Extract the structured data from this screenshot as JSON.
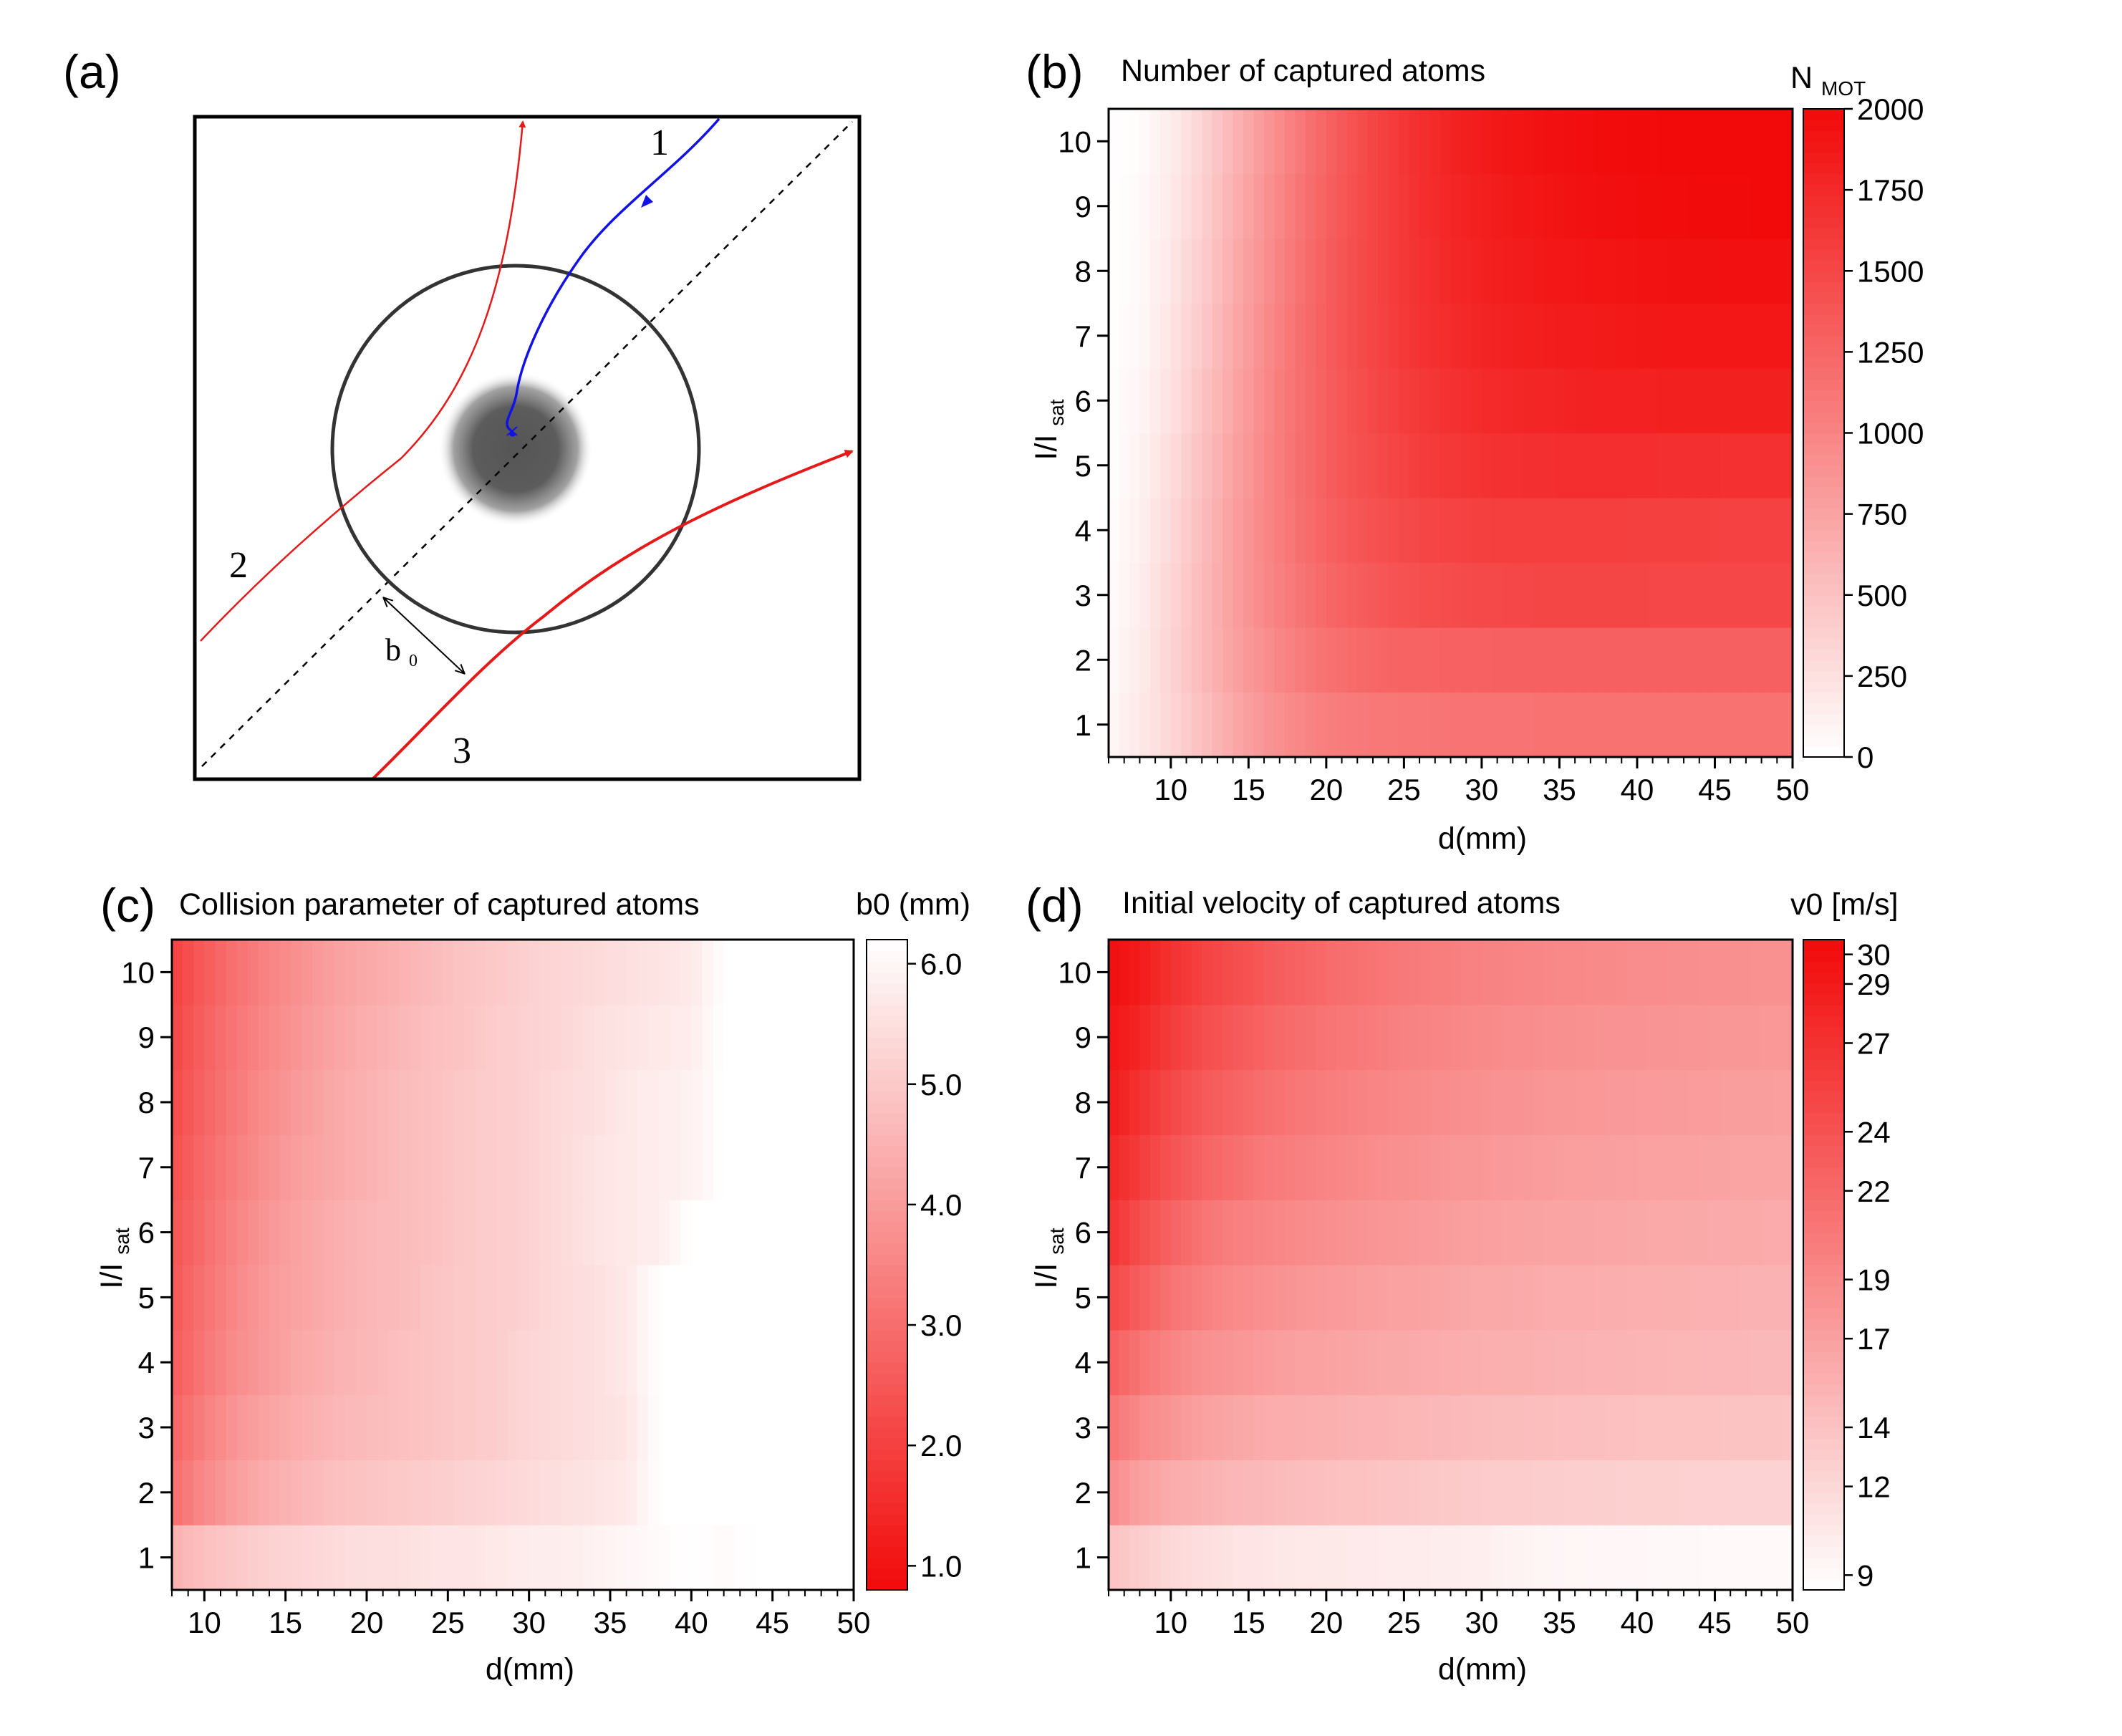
{
  "panels": {
    "a": {
      "label": "(a)",
      "traj1": "1",
      "traj2": "2",
      "traj3": "3",
      "b0_label": "b",
      "b0_sub": "0"
    },
    "b": {
      "label": "(b)",
      "title": "Number of captured atoms",
      "cbar_title": "N",
      "cbar_sub": "MOT"
    },
    "c": {
      "label": "(c)",
      "title": "Collision parameter of captured atoms",
      "cbar_title": "b0 (mm)"
    },
    "d": {
      "label": "(d)",
      "title": "Initial velocity of captured atoms",
      "cbar_title": "v0 [m/s]"
    }
  },
  "chart_data": [
    {
      "panel": "b",
      "type": "heatmap",
      "title": "Number of captured atoms",
      "xlabel": "d(mm)",
      "ylabel": "I/I",
      "ylabel_sub": "sat",
      "xlim": [
        6,
        50
      ],
      "ylim": [
        0.5,
        10.5
      ],
      "xticks": [
        10,
        15,
        20,
        25,
        30,
        35,
        40,
        45,
        50
      ],
      "yticks": [
        1,
        2,
        3,
        4,
        5,
        6,
        7,
        8,
        9,
        10
      ],
      "colorbar": {
        "label": "NMOT",
        "range": [
          0,
          2000
        ],
        "ticks": [
          0,
          250,
          500,
          750,
          1000,
          1250,
          1500,
          1750,
          2000
        ],
        "low_color": "#ffffff",
        "high_color": "#f20a0a"
      },
      "d_values": [
        6,
        8,
        10,
        12,
        14,
        16,
        18,
        20,
        22,
        24,
        26,
        28,
        30,
        32,
        34,
        36,
        38,
        40,
        42,
        44,
        46,
        48,
        50
      ],
      "z": [
        [
          60,
          180,
          330,
          520,
          700,
          860,
          970,
          1050,
          1090,
          1110,
          1120,
          1130,
          1140,
          1140,
          1150,
          1150,
          1150,
          1150,
          1150,
          1150,
          1150,
          1150,
          1150
        ],
        [
          40,
          150,
          350,
          560,
          760,
          920,
          1050,
          1150,
          1220,
          1260,
          1280,
          1290,
          1290,
          1300,
          1300,
          1300,
          1300,
          1300,
          1300,
          1300,
          1300,
          1300,
          1300
        ],
        [
          30,
          140,
          330,
          560,
          780,
          960,
          1110,
          1230,
          1320,
          1390,
          1440,
          1470,
          1490,
          1500,
          1510,
          1510,
          1510,
          1510,
          1500,
          1500,
          1500,
          1500,
          1500
        ],
        [
          20,
          120,
          300,
          540,
          770,
          980,
          1140,
          1280,
          1380,
          1450,
          1500,
          1540,
          1560,
          1570,
          1570,
          1570,
          1570,
          1560,
          1560,
          1560,
          1550,
          1550,
          1550
        ],
        [
          10,
          100,
          270,
          510,
          750,
          970,
          1160,
          1310,
          1420,
          1510,
          1580,
          1630,
          1670,
          1690,
          1700,
          1710,
          1710,
          1710,
          1700,
          1700,
          1690,
          1690,
          1690
        ],
        [
          10,
          80,
          240,
          480,
          720,
          950,
          1150,
          1310,
          1440,
          1540,
          1620,
          1680,
          1730,
          1760,
          1780,
          1800,
          1810,
          1810,
          1820,
          1820,
          1820,
          1820,
          1820
        ],
        [
          5,
          60,
          210,
          440,
          690,
          930,
          1140,
          1320,
          1460,
          1570,
          1660,
          1730,
          1780,
          1820,
          1840,
          1860,
          1870,
          1880,
          1890,
          1890,
          1890,
          1890,
          1890
        ],
        [
          5,
          50,
          190,
          410,
          660,
          900,
          1120,
          1310,
          1460,
          1580,
          1680,
          1750,
          1810,
          1850,
          1880,
          1900,
          1920,
          1930,
          1940,
          1940,
          1950,
          1950,
          1950
        ],
        [
          5,
          40,
          170,
          380,
          630,
          870,
          1090,
          1290,
          1450,
          1580,
          1690,
          1770,
          1830,
          1880,
          1910,
          1940,
          1960,
          1970,
          1980,
          1990,
          1990,
          2000,
          2000
        ],
        [
          5,
          30,
          150,
          350,
          600,
          840,
          1060,
          1270,
          1440,
          1580,
          1700,
          1790,
          1860,
          1910,
          1940,
          1960,
          1980,
          1990,
          2000,
          2000,
          2000,
          2000,
          2000
        ]
      ]
    },
    {
      "panel": "c",
      "type": "heatmap",
      "title": "Collision parameter of captured atoms",
      "xlabel": "d(mm)",
      "ylabel": "I/I",
      "ylabel_sub": "sat",
      "xlim": [
        8,
        50
      ],
      "ylim": [
        0.5,
        10.5
      ],
      "xticks": [
        10,
        15,
        20,
        25,
        30,
        35,
        40,
        45,
        50
      ],
      "yticks": [
        1,
        2,
        3,
        4,
        5,
        6,
        7,
        8,
        9,
        10
      ],
      "colorbar": {
        "label": "b0 (mm)",
        "range": [
          0.8,
          6.2
        ],
        "ticks": [
          1.0,
          2.0,
          3.0,
          4.0,
          5.0,
          6.0
        ],
        "low_color": "#f20a0a",
        "high_color": "#ffffff"
      },
      "d_values": [
        8,
        10,
        12,
        14,
        16,
        18,
        20,
        22,
        24,
        26,
        28,
        30,
        32,
        34,
        36,
        38,
        40,
        42,
        44,
        46,
        48,
        50
      ],
      "z": [
        [
          4.5,
          4.8,
          5.0,
          5.2,
          5.3,
          5.4,
          5.5,
          5.5,
          5.6,
          5.6,
          5.7,
          5.8,
          5.8,
          5.9,
          6.0,
          6.1,
          6.2,
          6.1,
          6.2,
          6.2,
          6.2,
          6.2
        ],
        [
          3.0,
          3.6,
          4.1,
          4.4,
          4.6,
          4.8,
          4.9,
          5.0,
          5.1,
          5.2,
          5.3,
          5.4,
          5.5,
          5.6,
          5.7,
          6.2,
          6.2,
          6.2,
          6.2,
          6.2,
          6.2,
          6.2
        ],
        [
          2.8,
          3.4,
          3.9,
          4.2,
          4.4,
          4.6,
          4.7,
          4.8,
          4.9,
          5.0,
          5.1,
          5.3,
          5.4,
          5.5,
          5.6,
          6.2,
          6.2,
          6.2,
          6.2,
          6.2,
          6.2,
          6.2
        ],
        [
          2.6,
          3.2,
          3.7,
          4.0,
          4.3,
          4.5,
          4.6,
          4.8,
          4.9,
          5.0,
          5.1,
          5.3,
          5.4,
          5.5,
          5.7,
          6.2,
          6.2,
          6.2,
          6.2,
          6.2,
          6.2,
          6.2
        ],
        [
          2.5,
          3.1,
          3.6,
          4.0,
          4.2,
          4.4,
          4.6,
          4.7,
          4.9,
          5.0,
          5.1,
          5.2,
          5.4,
          5.5,
          5.7,
          6.2,
          6.2,
          6.2,
          6.2,
          6.2,
          6.2,
          6.2
        ],
        [
          2.4,
          3.0,
          3.5,
          3.9,
          4.2,
          4.4,
          4.6,
          4.7,
          4.8,
          5.0,
          5.1,
          5.2,
          5.4,
          5.6,
          5.7,
          5.8,
          6.2,
          6.2,
          6.2,
          6.2,
          6.2,
          6.2
        ],
        [
          2.3,
          2.9,
          3.4,
          3.8,
          4.1,
          4.3,
          4.5,
          4.7,
          4.8,
          5.0,
          5.1,
          5.2,
          5.4,
          5.6,
          5.7,
          5.8,
          5.9,
          6.2,
          6.2,
          6.2,
          6.2,
          6.2
        ],
        [
          2.2,
          2.8,
          3.3,
          3.7,
          4.0,
          4.3,
          4.5,
          4.7,
          4.8,
          5.0,
          5.1,
          5.2,
          5.4,
          5.5,
          5.7,
          5.8,
          5.9,
          6.2,
          6.2,
          6.2,
          6.2,
          6.2
        ],
        [
          2.1,
          2.7,
          3.2,
          3.6,
          3.9,
          4.2,
          4.4,
          4.6,
          4.8,
          4.9,
          5.1,
          5.2,
          5.3,
          5.5,
          5.6,
          5.7,
          5.8,
          6.2,
          6.2,
          6.2,
          6.2,
          6.2
        ],
        [
          2.0,
          2.6,
          3.1,
          3.5,
          3.8,
          4.1,
          4.3,
          4.5,
          4.7,
          4.9,
          5.0,
          5.2,
          5.3,
          5.4,
          5.5,
          5.6,
          5.7,
          6.2,
          6.2,
          6.2,
          6.2,
          6.2
        ]
      ]
    },
    {
      "panel": "d",
      "type": "heatmap",
      "title": "Initial velocity of captured atoms",
      "xlabel": "d(mm)",
      "ylabel": "I/I",
      "ylabel_sub": "sat",
      "xlim": [
        6,
        50
      ],
      "ylim": [
        0.5,
        10.5
      ],
      "xticks": [
        10,
        15,
        20,
        25,
        30,
        35,
        40,
        45,
        50
      ],
      "yticks": [
        1,
        2,
        3,
        4,
        5,
        6,
        7,
        8,
        9,
        10
      ],
      "colorbar": {
        "label": "v0 [m/s]",
        "range": [
          8.5,
          30.5
        ],
        "ticks": [
          9,
          12,
          14,
          17,
          19,
          22,
          24,
          27,
          29,
          30
        ],
        "low_color": "#ffffff",
        "high_color": "#f20a0a"
      },
      "d_values": [
        6,
        8,
        10,
        12,
        14,
        16,
        18,
        20,
        22,
        24,
        26,
        28,
        30,
        32,
        34,
        36,
        38,
        40,
        42,
        44,
        46,
        48,
        50
      ],
      "z": [
        [
          14,
          13,
          12,
          11.5,
          11,
          10.8,
          10.6,
          10.5,
          10.4,
          10.3,
          10.2,
          10.1,
          10.0,
          9.6,
          9.4,
          9.3,
          9.2,
          9.2,
          9.1,
          9.1,
          9.0,
          9.0,
          9.0
        ],
        [
          19,
          17,
          16,
          15.5,
          15,
          14.8,
          14.5,
          14.2,
          14,
          13.8,
          13.6,
          13.4,
          13.2,
          13.1,
          13.0,
          12.9,
          12.8,
          12.7,
          12.7,
          12.6,
          12.6,
          12.5,
          12.5
        ],
        [
          21,
          19,
          18,
          17,
          16.5,
          16,
          15.8,
          15.6,
          15.4,
          15.2,
          15,
          14.8,
          14.6,
          14.5,
          14.4,
          14.3,
          14.2,
          14.1,
          14.0,
          14.0,
          13.9,
          13.9,
          13.8
        ],
        [
          23,
          21,
          19.5,
          18.5,
          18,
          17.5,
          17,
          16.8,
          16.5,
          16.3,
          16.1,
          15.9,
          15.7,
          15.6,
          15.5,
          15.4,
          15.3,
          15.2,
          15.1,
          15.0,
          15.0,
          14.9,
          14.9
        ],
        [
          25,
          23,
          21,
          20,
          19,
          18.5,
          18,
          17.6,
          17.3,
          17,
          16.8,
          16.5,
          16.3,
          16.2,
          16.0,
          15.9,
          15.8,
          15.7,
          15.6,
          15.5,
          15.5,
          15.4,
          15.4
        ],
        [
          27,
          24.5,
          22.5,
          21,
          20,
          19.5,
          19,
          18.6,
          18.2,
          17.9,
          17.6,
          17.3,
          17.1,
          16.9,
          16.7,
          16.6,
          16.5,
          16.4,
          16.3,
          16.2,
          16.1,
          16.1,
          16.0
        ],
        [
          28,
          26,
          24,
          22.5,
          21.5,
          20.5,
          20,
          19.5,
          19,
          18.6,
          18.3,
          18,
          17.8,
          17.6,
          17.4,
          17.2,
          17.1,
          17.0,
          16.9,
          16.8,
          16.7,
          16.7,
          16.6
        ],
        [
          29,
          27,
          25,
          23.5,
          22.5,
          21.5,
          20.8,
          20.2,
          19.7,
          19.3,
          19,
          18.7,
          18.4,
          18.2,
          18,
          17.8,
          17.7,
          17.6,
          17.5,
          17.4,
          17.3,
          17.3,
          17.2
        ],
        [
          29.5,
          28,
          26,
          24.5,
          23.5,
          22.5,
          21.6,
          21,
          20.5,
          20,
          19.6,
          19.3,
          19,
          18.8,
          18.6,
          18.4,
          18.3,
          18.2,
          18.1,
          18.0,
          17.9,
          17.8,
          17.8
        ],
        [
          30,
          29,
          27,
          25.5,
          24.5,
          23.5,
          22.6,
          21.8,
          21.2,
          20.7,
          20.3,
          20,
          19.7,
          19.5,
          19.3,
          19.1,
          19.0,
          18.8,
          18.7,
          18.6,
          18.5,
          18.4,
          18.4
        ]
      ]
    }
  ]
}
